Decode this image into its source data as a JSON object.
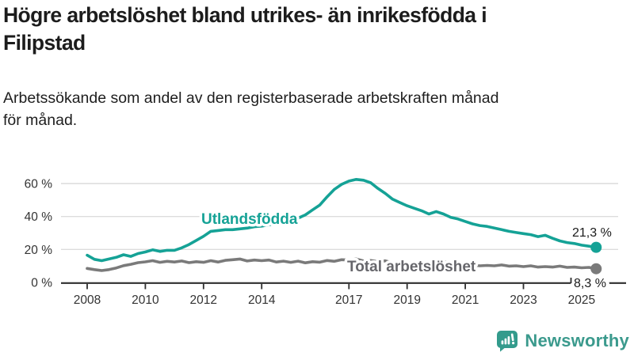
{
  "header": {
    "title_line1": "Högre arbetslöshet bland utrikes- än inrikesfödda i",
    "title_line2": "Filipstad",
    "subtitle_line1": "Arbetssökande som andel av den registerbaserade arbetskraften månad",
    "subtitle_line2": "för månad."
  },
  "footer": {
    "brand": "Newsworthy",
    "logo_icon": "bar-chart-speech-bubble-icon",
    "brand_color": "#3b9a8d",
    "icon_color": "#339b8c"
  },
  "colors": {
    "accent_teal": "#15a296",
    "series_gray": "#7a7a7a",
    "gray_label": "#66666b",
    "gridline": "#dcdcdc",
    "axis": "#2e2e2e",
    "tick_text": "#333333",
    "value_text": "#1a1a1a"
  },
  "chart_data": {
    "type": "line",
    "title": "Högre arbetslöshet bland utrikes- än inrikesfödda i Filipstad",
    "subtitle": "Arbetssökande som andel av den registerbaserade arbetskraften månad för månad.",
    "xlabel": "",
    "ylabel": "",
    "grid": "horizontal",
    "legend_position": "inline-labels",
    "x_start_year": 2008,
    "x_step_years": 0.25,
    "xlim_years": [
      2007.1,
      2026.5
    ],
    "ylim": [
      0,
      70
    ],
    "y_ticks": [
      0,
      20,
      40,
      60
    ],
    "y_tick_labels": [
      "0 %",
      "20 %",
      "40 %",
      "60 %"
    ],
    "x_ticks": [
      2008,
      2010,
      2012,
      2014,
      2017,
      2019,
      2021,
      2023,
      2025
    ],
    "x_tick_labels": [
      "2008",
      "2010",
      "2012",
      "2014",
      "2017",
      "2019",
      "2021",
      "2023",
      "2025"
    ],
    "series": [
      {
        "name": "Utlandsfödda",
        "color": "#15a296",
        "end_label": "21,3 %",
        "end_value": 21.3,
        "values": [
          16.5,
          14.0,
          13.2,
          14.2,
          15.2,
          16.8,
          15.8,
          17.5,
          18.5,
          19.8,
          18.8,
          19.5,
          19.5,
          21.0,
          23.0,
          25.5,
          28.0,
          31.0,
          31.5,
          32.0,
          32.0,
          32.5,
          33.0,
          33.8,
          34.2,
          35.0,
          35.6,
          36.4,
          37.0,
          39.0,
          41.0,
          44.0,
          47.0,
          52.0,
          56.5,
          59.5,
          61.5,
          62.5,
          62.0,
          60.5,
          57.0,
          54.0,
          50.5,
          48.5,
          46.5,
          45.0,
          43.5,
          41.5,
          43.0,
          41.5,
          39.5,
          38.5,
          37.0,
          35.5,
          34.5,
          34.0,
          33.0,
          32.0,
          31.0,
          30.3,
          29.6,
          29.0,
          27.8,
          28.6,
          26.8,
          25.2,
          24.2,
          23.6,
          22.6,
          22.0,
          21.3
        ]
      },
      {
        "name": "Total arbetslöshet",
        "color": "#7a7a7a",
        "label_color": "#66666b",
        "end_label": "8,3 %",
        "end_value": 8.3,
        "values": [
          8.5,
          7.8,
          7.2,
          7.8,
          8.8,
          10.2,
          11.0,
          12.0,
          12.5,
          13.2,
          12.2,
          12.8,
          12.4,
          13.0,
          12.0,
          12.6,
          12.2,
          13.2,
          12.4,
          13.4,
          13.8,
          14.2,
          13.0,
          13.6,
          13.2,
          13.6,
          12.4,
          12.9,
          12.2,
          12.9,
          11.9,
          12.6,
          12.3,
          13.3,
          12.8,
          13.8,
          13.6,
          14.2,
          13.0,
          13.3,
          12.6,
          13.1,
          11.9,
          12.3,
          11.6,
          12.1,
          11.3,
          11.9,
          12.1,
          12.6,
          11.6,
          11.1,
          10.9,
          10.6,
          10.1,
          10.3,
          10.1,
          10.6,
          9.9,
          10.1,
          9.6,
          10.1,
          9.3,
          9.6,
          9.3,
          9.9,
          9.1,
          9.3,
          8.9,
          9.1,
          8.3
        ]
      }
    ]
  }
}
